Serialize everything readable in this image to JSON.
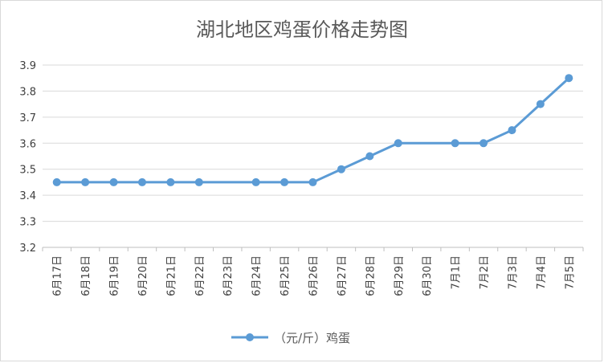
{
  "chart_data": {
    "type": "line",
    "title": "湖北地区鸡蛋价格走势图",
    "categories": [
      "6月17日",
      "6月18日",
      "6月19日",
      "6月20日",
      "6月21日",
      "6月22日",
      "6月23日",
      "6月24日",
      "6月25日",
      "6月26日",
      "6月27日",
      "6月28日",
      "6月29日",
      "6月30日",
      "7月1日",
      "7月2日",
      "7月3日",
      "7月4日",
      "7月5日"
    ],
    "series": [
      {
        "name": "（元/斤）鸡蛋",
        "values": [
          3.45,
          3.45,
          3.45,
          3.45,
          3.45,
          3.45,
          null,
          3.45,
          3.45,
          3.45,
          3.5,
          3.55,
          3.6,
          null,
          3.6,
          3.6,
          3.65,
          3.75,
          3.85
        ],
        "color": "#5b9bd5"
      }
    ],
    "ylim": [
      3.2,
      3.9
    ],
    "yticks": [
      "3.2",
      "3.3",
      "3.4",
      "3.5",
      "3.6",
      "3.7",
      "3.8",
      "3.9"
    ],
    "grid": true,
    "legend_position": "bottom"
  }
}
